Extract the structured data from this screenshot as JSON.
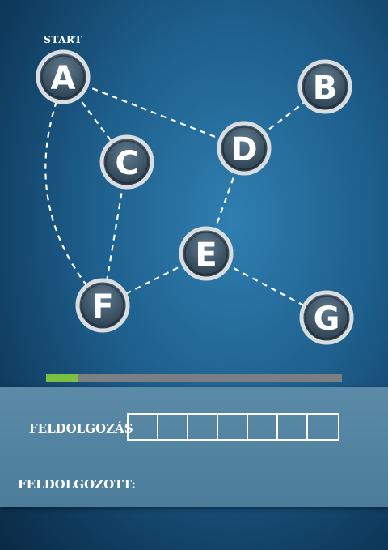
{
  "start_label": "START",
  "nodes": [
    {
      "id": "A",
      "label": "A"
    },
    {
      "id": "B",
      "label": "B"
    },
    {
      "id": "C",
      "label": "C"
    },
    {
      "id": "D",
      "label": "D"
    },
    {
      "id": "E",
      "label": "E"
    },
    {
      "id": "F",
      "label": "F"
    },
    {
      "id": "G",
      "label": "G"
    }
  ],
  "edges": [
    [
      "A",
      "D"
    ],
    [
      "A",
      "C"
    ],
    [
      "A",
      "F"
    ],
    [
      "C",
      "F"
    ],
    [
      "D",
      "B"
    ],
    [
      "D",
      "E"
    ],
    [
      "E",
      "F"
    ],
    [
      "E",
      "G"
    ]
  ],
  "progress": {
    "fraction": 0.11,
    "fill_color": "#7bc043",
    "track_color": "#7a7f84"
  },
  "processing": {
    "label": "FELDOLGOZÁS",
    "slots": 7,
    "items": []
  },
  "processed": {
    "label": "FELDOLGOZOTT:",
    "value": ""
  }
}
